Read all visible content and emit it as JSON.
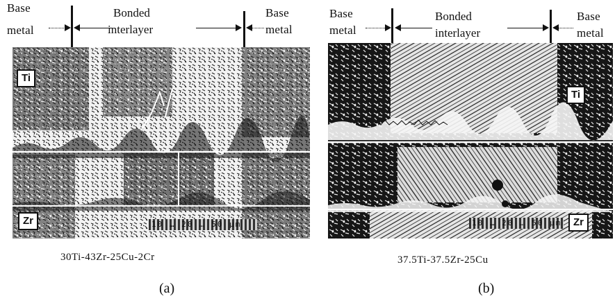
{
  "panel_a": {
    "header": {
      "left": [
        "Base",
        "metal"
      ],
      "center": [
        "Bonded",
        "interlayer"
      ],
      "right": [
        "Base",
        "metal"
      ]
    },
    "tag_top": "Ti",
    "tag_bottom": "Zr",
    "scale_text": "10 … 20 … 50 μm",
    "composition": "30Ti-43Zr-25Cu-2Cr",
    "sublabel": "(a)"
  },
  "panel_b": {
    "header": {
      "left": [
        "Base",
        "metal"
      ],
      "center": [
        "Bonded",
        "interlayer"
      ],
      "right": [
        "Base",
        "metal"
      ]
    },
    "tag_top": "Ti",
    "tag_bottom": "Zr",
    "scale_text": "10 … 20 … 50 μm",
    "composition": "37.5Ti-37.5Zr-25Cu",
    "sublabel": "(b)"
  },
  "colors": {
    "ink": "#111111",
    "paper": "#ffffff",
    "micro_dark": "#161616",
    "micro_light": "#f4f4f4"
  }
}
